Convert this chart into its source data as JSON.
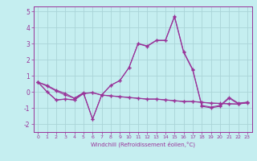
{
  "background_color": "#c5eef0",
  "grid_color": "#aad4d8",
  "line_color": "#993399",
  "x": [
    0,
    1,
    2,
    3,
    4,
    5,
    6,
    7,
    8,
    9,
    10,
    11,
    12,
    13,
    14,
    15,
    16,
    17,
    18,
    19,
    20,
    21,
    22,
    23
  ],
  "line1": [
    0.6,
    0.4,
    0.1,
    -0.1,
    -0.4,
    -0.1,
    -1.7,
    -0.2,
    0.4,
    0.7,
    1.5,
    3.0,
    2.85,
    3.2,
    3.2,
    4.7,
    2.5,
    1.4,
    -0.85,
    -0.95,
    -0.85,
    -0.35,
    -0.7,
    -0.65
  ],
  "line2": [
    0.6,
    0.35,
    0.05,
    -0.2,
    -0.4,
    -0.05,
    -1.7,
    -0.2,
    0.4,
    0.7,
    1.5,
    2.98,
    2.82,
    3.18,
    3.18,
    4.65,
    2.45,
    1.35,
    -0.9,
    -1.0,
    -0.9,
    -0.4,
    -0.75,
    -0.7
  ],
  "line3": [
    0.6,
    0.0,
    -0.5,
    -0.45,
    -0.5,
    -0.1,
    -0.05,
    -0.2,
    -0.25,
    -0.3,
    -0.35,
    -0.4,
    -0.45,
    -0.45,
    -0.5,
    -0.55,
    -0.6,
    -0.6,
    -0.65,
    -0.7,
    -0.72,
    -0.74,
    -0.76,
    -0.65
  ],
  "line4": [
    0.6,
    0.0,
    -0.52,
    -0.46,
    -0.51,
    -0.11,
    -0.06,
    -0.21,
    -0.26,
    -0.31,
    -0.36,
    -0.41,
    -0.46,
    -0.46,
    -0.51,
    -0.56,
    -0.61,
    -0.61,
    -0.66,
    -0.71,
    -0.73,
    -0.75,
    -0.77,
    -0.66
  ],
  "ylim": [
    -2.5,
    5.3
  ],
  "yticks": [
    -2,
    -1,
    0,
    1,
    2,
    3,
    4,
    5
  ],
  "xlabel": "Windchill (Refroidissement éolien,°C)",
  "xticks": [
    0,
    1,
    2,
    3,
    4,
    5,
    6,
    7,
    8,
    9,
    10,
    11,
    12,
    13,
    14,
    15,
    16,
    17,
    18,
    19,
    20,
    21,
    22,
    23
  ]
}
